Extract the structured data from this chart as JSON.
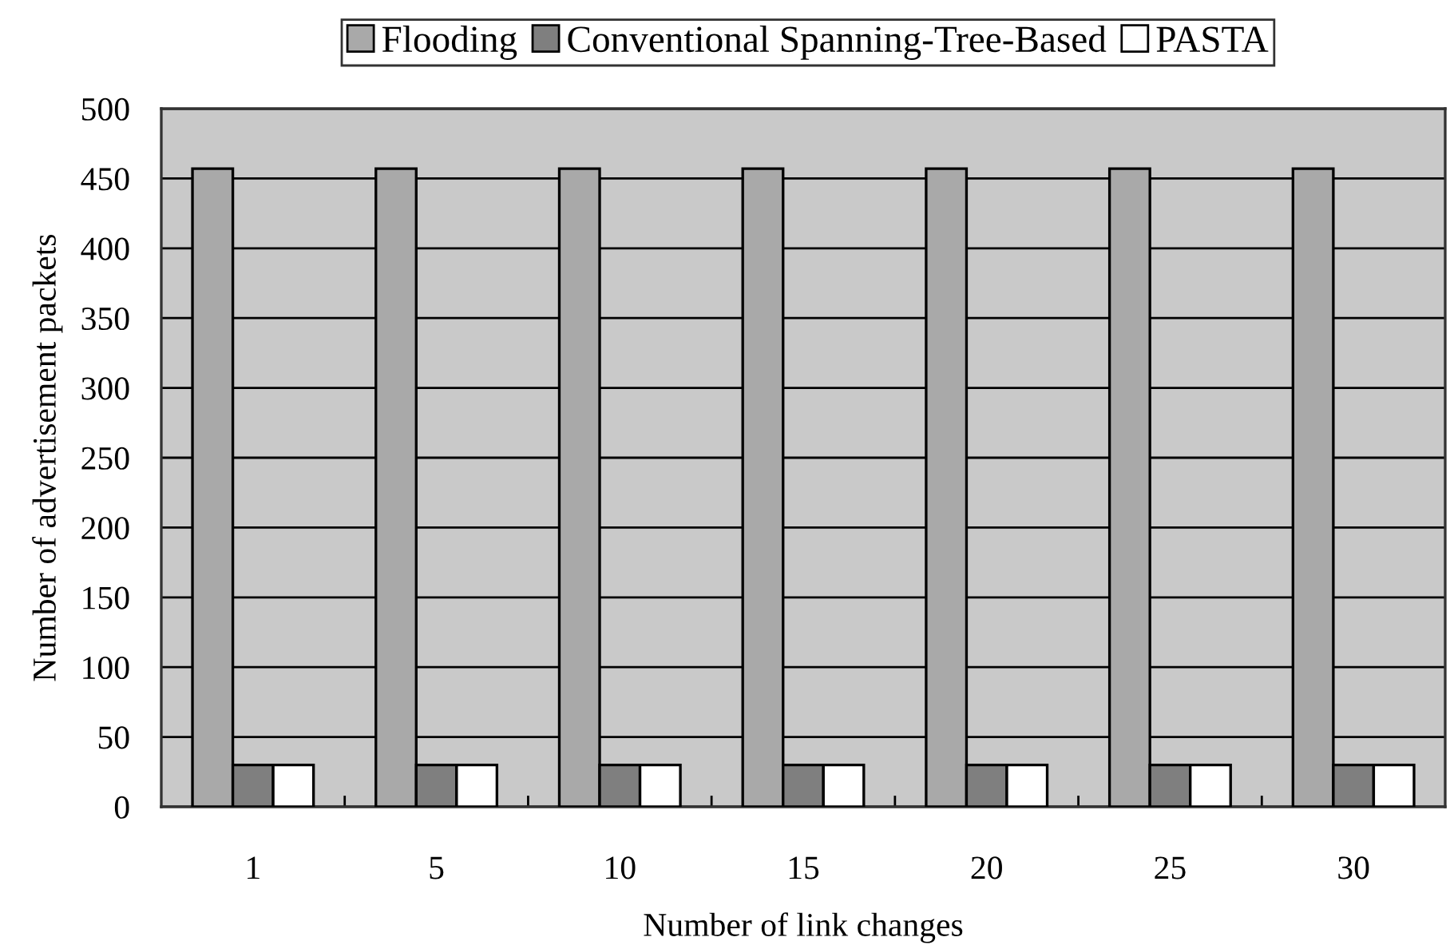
{
  "chart_data": {
    "type": "bar",
    "xlabel": "Number of link changes",
    "ylabel": "Number of advertisement packets",
    "categories": [
      "1",
      "5",
      "10",
      "15",
      "20",
      "25",
      "30"
    ],
    "series": [
      {
        "name": "Flooding",
        "color": "#a9a9a9",
        "values": [
          457,
          457,
          457,
          457,
          457,
          457,
          457
        ]
      },
      {
        "name": "Conventional Spanning-Tree-Based",
        "color": "#7f7f7f",
        "values": [
          30,
          30,
          30,
          30,
          30,
          30,
          30
        ]
      },
      {
        "name": "PASTA",
        "color": "#ffffff",
        "values": [
          30,
          30,
          30,
          30,
          30,
          30,
          30
        ]
      }
    ],
    "ylim": [
      0,
      500
    ],
    "yticks": [
      0,
      50,
      100,
      150,
      200,
      250,
      300,
      350,
      400,
      450,
      500
    ],
    "grid": "y",
    "legend": "top"
  }
}
